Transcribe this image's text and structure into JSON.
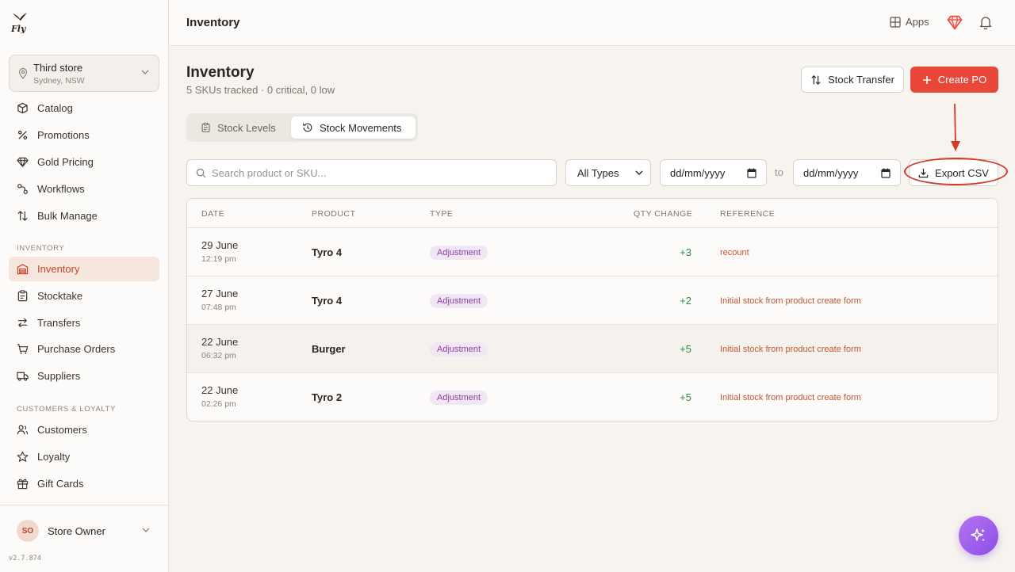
{
  "topbar": {
    "title": "Inventory",
    "apps_label": "Apps"
  },
  "store": {
    "name": "Third store",
    "location": "Sydney, NSW"
  },
  "sidebar": {
    "items_top": [
      {
        "label": "Catalog",
        "icon": "box-icon"
      },
      {
        "label": "Promotions",
        "icon": "percent-icon"
      },
      {
        "label": "Gold Pricing",
        "icon": "gem-icon"
      },
      {
        "label": "Workflows",
        "icon": "workflow-icon"
      },
      {
        "label": "Bulk Manage",
        "icon": "arrows-updown-icon"
      }
    ],
    "section_inventory": "INVENTORY",
    "items_inventory": [
      {
        "label": "Inventory",
        "icon": "warehouse-icon",
        "active": true
      },
      {
        "label": "Stocktake",
        "icon": "clipboard-icon"
      },
      {
        "label": "Transfers",
        "icon": "transfer-icon"
      },
      {
        "label": "Purchase Orders",
        "icon": "cart-icon"
      },
      {
        "label": "Suppliers",
        "icon": "truck-icon"
      }
    ],
    "section_customers": "CUSTOMERS & LOYALTY",
    "items_customers": [
      {
        "label": "Customers",
        "icon": "users-icon"
      },
      {
        "label": "Loyalty",
        "icon": "star-icon"
      },
      {
        "label": "Gift Cards",
        "icon": "gift-icon"
      }
    ]
  },
  "user": {
    "initials": "SO",
    "name": "Store Owner",
    "version": "v2.7.874"
  },
  "page": {
    "title": "Inventory",
    "subtitle": "5 SKUs tracked · 0 critical, 0 low",
    "stock_transfer_label": "Stock Transfer",
    "create_po_label": "Create PO"
  },
  "tabs": {
    "stock_levels": "Stock Levels",
    "stock_movements": "Stock Movements",
    "active": "stock_movements"
  },
  "filters": {
    "search_placeholder": "Search product or SKU...",
    "type_value": "All Types",
    "date_from_placeholder": "dd/mm/yyyy",
    "to_label": "to",
    "date_to_placeholder": "dd/mm/yyyy",
    "export_label": "Export CSV"
  },
  "table": {
    "headers": {
      "date": "DATE",
      "product": "PRODUCT",
      "type": "TYPE",
      "qty": "QTY CHANGE",
      "reference": "REFERENCE"
    },
    "rows": [
      {
        "date": "29 June",
        "time": "12:19 pm",
        "product": "Tyro 4",
        "type": "Adjustment",
        "qty": "+3",
        "reference": "recount"
      },
      {
        "date": "27 June",
        "time": "07:48 pm",
        "product": "Tyro 4",
        "type": "Adjustment",
        "qty": "+2",
        "reference": "Initial stock from product create form"
      },
      {
        "date": "22 June",
        "time": "06:32 pm",
        "product": "Burger",
        "type": "Adjustment",
        "qty": "+5",
        "reference": "Initial stock from product create form"
      },
      {
        "date": "22 June",
        "time": "02:26 pm",
        "product": "Tyro 2",
        "type": "Adjustment",
        "qty": "+5",
        "reference": "Initial stock from product create form"
      }
    ]
  },
  "colors": {
    "accent": "#e8473a",
    "active_nav_bg": "#f6e6de",
    "badge_bg": "#f0e6f4",
    "badge_text": "#8b3fa0",
    "qty_positive": "#2f8a43",
    "annotation": "#d33a26"
  }
}
